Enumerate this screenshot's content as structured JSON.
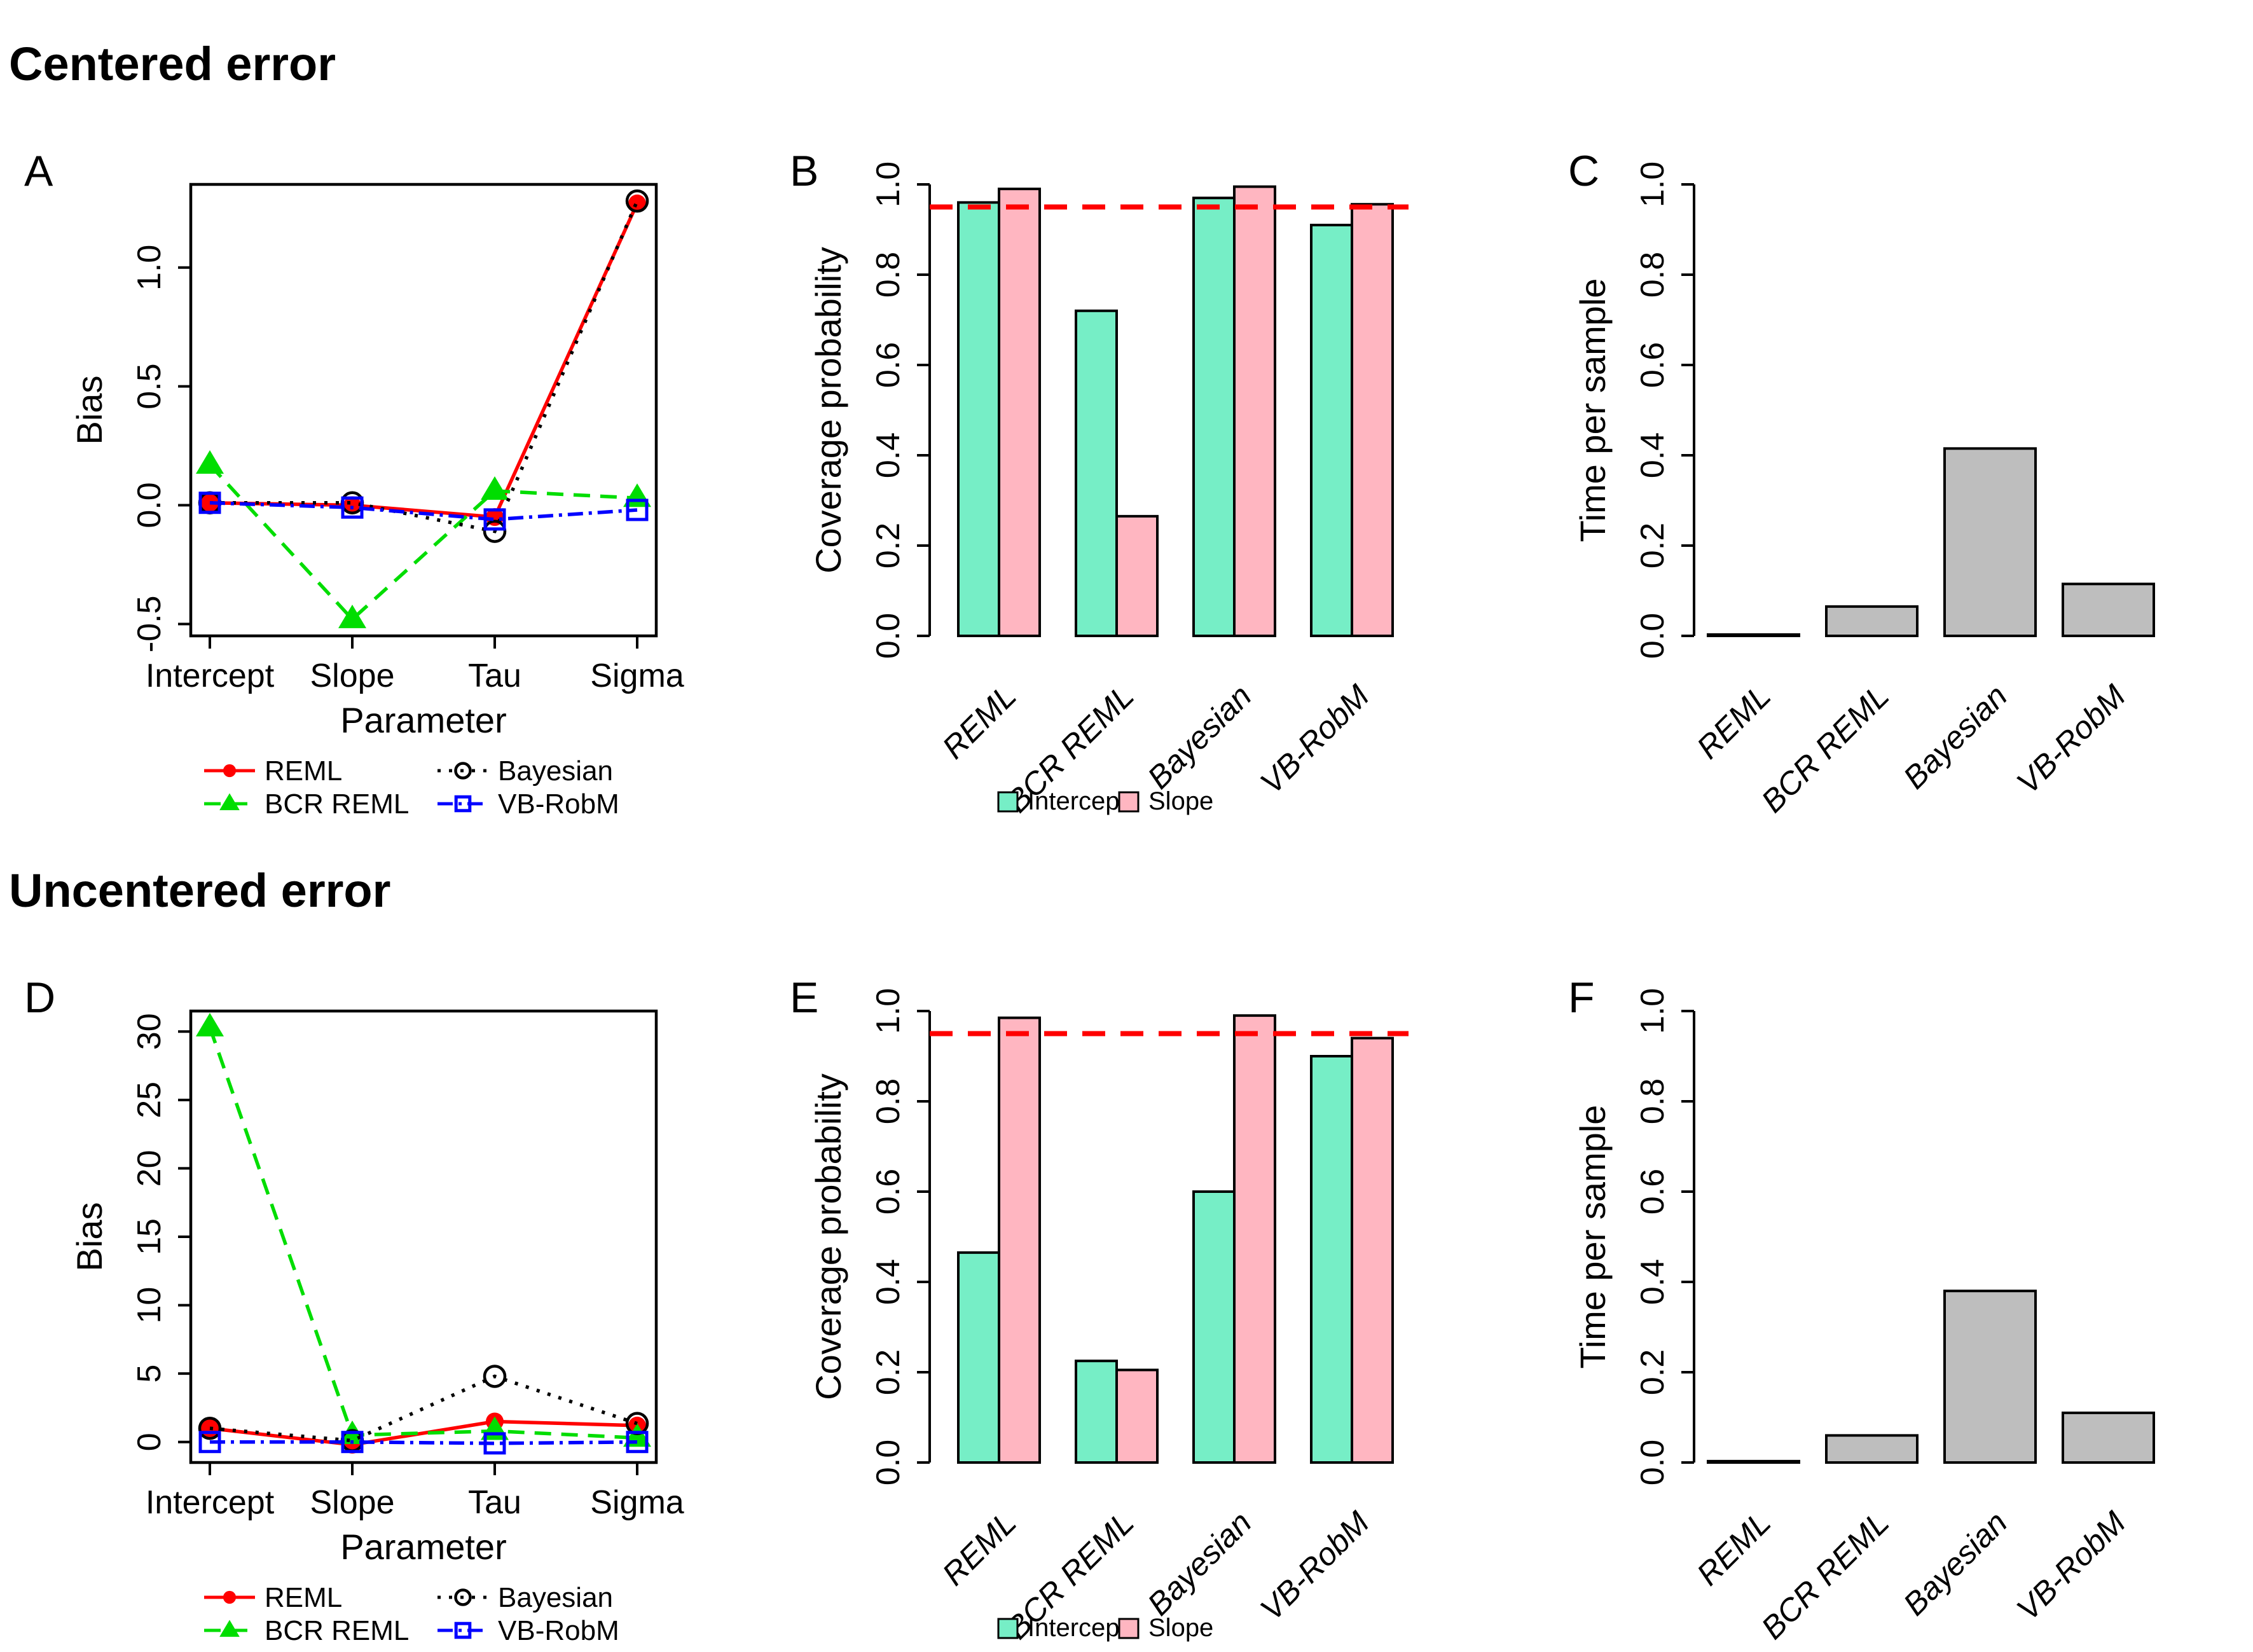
{
  "page": {
    "title_centered": "Centered error",
    "title_uncentered": "Uncentered error"
  },
  "colors": {
    "reml": "#FF0000",
    "bcr_reml": "#00DD00",
    "bayesian": "#000000",
    "vb_robm": "#0000FF",
    "intercept_fill": "#76EEC6",
    "slope_fill": "#FFB6C1",
    "time_fill": "#BEBEBE",
    "reference_line": "#FF0000",
    "text": "#000000"
  },
  "chart_data": [
    {
      "id": "A",
      "panel_label": "A",
      "section": "Centered error",
      "type": "line",
      "xlabel": "Parameter",
      "ylabel": "Bias",
      "categories": [
        "Intercept",
        "Slope",
        "Tau",
        "Sigma"
      ],
      "ylim": [
        -0.55,
        1.35
      ],
      "yticks": [
        -0.5,
        0.0,
        0.5,
        1.0
      ],
      "ytick_labels": [
        "-0.5",
        "0.0",
        "0.5",
        "1.0"
      ],
      "grid": false,
      "legend_position": "below",
      "series": [
        {
          "name": "REML",
          "color": "#FF0000",
          "linestyle": "solid",
          "marker": "filled-circle",
          "values": [
            0.01,
            0.0,
            -0.05,
            1.27
          ]
        },
        {
          "name": "BCR REML",
          "color": "#00DD00",
          "linestyle": "dashed",
          "marker": "filled-triangle",
          "values": [
            0.17,
            -0.48,
            0.06,
            0.03
          ]
        },
        {
          "name": "Bayesian",
          "color": "#000000",
          "linestyle": "dotted",
          "marker": "open-circle",
          "values": [
            0.01,
            0.01,
            -0.11,
            1.28
          ]
        },
        {
          "name": "VB-RobM",
          "color": "#0000FF",
          "linestyle": "dashdot",
          "marker": "open-square",
          "values": [
            0.01,
            -0.01,
            -0.06,
            -0.02
          ]
        }
      ]
    },
    {
      "id": "B",
      "panel_label": "B",
      "section": "Centered error",
      "type": "grouped-bar",
      "xlabel": "",
      "ylabel": "Coverage probability",
      "categories": [
        "REML",
        "BCR REML",
        "Bayesian",
        "VB-RobM"
      ],
      "ylim": [
        0,
        1
      ],
      "yticks": [
        0,
        0.2,
        0.4,
        0.6,
        0.8,
        1.0
      ],
      "ytick_labels": [
        "0.0",
        "0.2",
        "0.4",
        "0.6",
        "0.8",
        "1.0"
      ],
      "grid": false,
      "legend_position": "below",
      "reference_line": {
        "y": 0.95,
        "color": "#FF0000",
        "style": "dashed"
      },
      "series": [
        {
          "name": "Intercept",
          "color": "#76EEC6",
          "values": [
            0.96,
            0.72,
            0.97,
            0.91
          ]
        },
        {
          "name": "Slope",
          "color": "#FFB6C1",
          "values": [
            0.99,
            0.265,
            0.995,
            0.956
          ]
        }
      ]
    },
    {
      "id": "C",
      "panel_label": "C",
      "section": "Centered error",
      "type": "bar",
      "xlabel": "",
      "ylabel": "Time per sample",
      "categories": [
        "REML",
        "BCR REML",
        "Bayesian",
        "VB-RobM"
      ],
      "ylim": [
        0,
        1
      ],
      "yticks": [
        0,
        0.2,
        0.4,
        0.6,
        0.8,
        1.0
      ],
      "ytick_labels": [
        "0.0",
        "0.2",
        "0.4",
        "0.6",
        "0.8",
        "1.0"
      ],
      "grid": false,
      "bar_color": "#BEBEBE",
      "values": [
        0.003,
        0.065,
        0.415,
        0.115
      ]
    },
    {
      "id": "D",
      "panel_label": "D",
      "section": "Uncentered error",
      "type": "line",
      "xlabel": "Parameter",
      "ylabel": "Bias",
      "categories": [
        "Intercept",
        "Slope",
        "Tau",
        "Sigma"
      ],
      "ylim": [
        -1.5,
        31.5
      ],
      "yticks": [
        0,
        5,
        10,
        15,
        20,
        25,
        30
      ],
      "ytick_labels": [
        "0",
        "5",
        "10",
        "15",
        "20",
        "25",
        "30"
      ],
      "grid": false,
      "legend_position": "below",
      "series": [
        {
          "name": "REML",
          "color": "#FF0000",
          "linestyle": "solid",
          "marker": "filled-circle",
          "values": [
            1.0,
            -0.2,
            1.5,
            1.2
          ]
        },
        {
          "name": "BCR REML",
          "color": "#00DD00",
          "linestyle": "dashed",
          "marker": "filled-triangle",
          "values": [
            30.3,
            0.5,
            0.8,
            0.3
          ]
        },
        {
          "name": "Bayesian",
          "color": "#000000",
          "linestyle": "dotted",
          "marker": "open-circle",
          "values": [
            1.0,
            0.1,
            4.8,
            1.35
          ]
        },
        {
          "name": "VB-RobM",
          "color": "#0000FF",
          "linestyle": "dashdot",
          "marker": "open-square",
          "values": [
            0.0,
            0.0,
            -0.1,
            0.0
          ]
        }
      ]
    },
    {
      "id": "E",
      "panel_label": "E",
      "section": "Uncentered error",
      "type": "grouped-bar",
      "xlabel": "",
      "ylabel": "Coverage probability",
      "categories": [
        "REML",
        "BCR REML",
        "Bayesian",
        "VB-RobM"
      ],
      "ylim": [
        0,
        1
      ],
      "yticks": [
        0,
        0.2,
        0.4,
        0.6,
        0.8,
        1.0
      ],
      "ytick_labels": [
        "0.0",
        "0.2",
        "0.4",
        "0.6",
        "0.8",
        "1.0"
      ],
      "grid": false,
      "legend_position": "below",
      "reference_line": {
        "y": 0.95,
        "color": "#FF0000",
        "style": "dashed"
      },
      "series": [
        {
          "name": "Intercept",
          "color": "#76EEC6",
          "values": [
            0.465,
            0.225,
            0.6,
            0.9
          ]
        },
        {
          "name": "Slope",
          "color": "#FFB6C1",
          "values": [
            0.985,
            0.205,
            0.99,
            0.94
          ]
        }
      ]
    },
    {
      "id": "F",
      "panel_label": "F",
      "section": "Uncentered error",
      "type": "bar",
      "xlabel": "",
      "ylabel": "Time per sample",
      "categories": [
        "REML",
        "BCR REML",
        "Bayesian",
        "VB-RobM"
      ],
      "ylim": [
        0,
        1
      ],
      "yticks": [
        0,
        0.2,
        0.4,
        0.6,
        0.8,
        1.0
      ],
      "ytick_labels": [
        "0.0",
        "0.2",
        "0.4",
        "0.6",
        "0.8",
        "1.0"
      ],
      "grid": false,
      "bar_color": "#BEBEBE",
      "values": [
        0.003,
        0.06,
        0.38,
        0.11
      ]
    }
  ]
}
